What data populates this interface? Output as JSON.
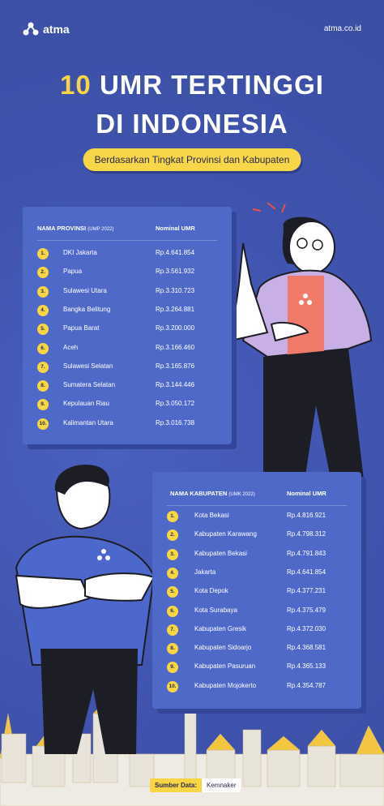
{
  "header": {
    "brand": "atma",
    "site": "atma.co.id"
  },
  "title": {
    "num": "10",
    "line1_rest": "UMR TERTINGGI",
    "line2": "DI INDONESIA",
    "subtitle": "Berdasarkan Tingkat Provinsi dan Kabupaten"
  },
  "provinsi": {
    "col1": "NAMA PROVINSI",
    "col1_note": "(UMP 2022)",
    "col2": "Nominal UMR",
    "rows": [
      {
        "n": "1.",
        "name": "DKI Jakarta",
        "value": "Rp.4.641.854"
      },
      {
        "n": "2.",
        "name": "Papua",
        "value": "Rp.3.561.932"
      },
      {
        "n": "3.",
        "name": "Sulawesi Utara",
        "value": "Rp.3.310.723"
      },
      {
        "n": "4.",
        "name": "Bangka Belitung",
        "value": "Rp.3.264.881"
      },
      {
        "n": "5.",
        "name": "Papua Barat",
        "value": "Rp.3.200.000"
      },
      {
        "n": "6.",
        "name": "Aceh",
        "value": "Rp.3.166.460"
      },
      {
        "n": "7.",
        "name": "Sulawesi Selatan",
        "value": "Rp.3.165.876"
      },
      {
        "n": "8.",
        "name": "Sumatera Selatan",
        "value": "Rp.3.144.446"
      },
      {
        "n": "9.",
        "name": "Kepulauan Riau",
        "value": "Rp.3.050.172"
      },
      {
        "n": "10.",
        "name": "Kalimantan Utara",
        "value": "Rp.3.016.738"
      }
    ]
  },
  "kabupaten": {
    "col1": "NAMA KABUPATEN",
    "col1_note": "(UMK 2022)",
    "col2": "Nominal UMR",
    "rows": [
      {
        "n": "1.",
        "name": "Kota Bekasi",
        "value": "Rp.4.816.921"
      },
      {
        "n": "2.",
        "name": "Kabupaten Karawang",
        "value": "Rp.4.798.312"
      },
      {
        "n": "3.",
        "name": "Kabupaten Bekasi",
        "value": "Rp.4.791.843"
      },
      {
        "n": "4.",
        "name": "Jakarta",
        "value": "Rp.4.641.854"
      },
      {
        "n": "5.",
        "name": "Kota Depok",
        "value": "Rp.4.377.231"
      },
      {
        "n": "6.",
        "name": "Kota Surabaya",
        "value": "Rp.4.375.479"
      },
      {
        "n": "7.",
        "name": "Kabupaten Gresik",
        "value": "Rp.4.372.030"
      },
      {
        "n": "8.",
        "name": "Kabupaten Sidoarjo",
        "value": "Rp.4.368.581"
      },
      {
        "n": "9.",
        "name": "Kabupaten Pasuruan",
        "value": "Rp.4.365.133"
      },
      {
        "n": "10.",
        "name": "Kabupaten Mojokerto",
        "value": "Rp.4.354.787"
      }
    ]
  },
  "source": {
    "label": "Sumber Data:",
    "value": "Kemnaker"
  },
  "colors": {
    "background": "#4257b2",
    "card": "#4f69c9",
    "accent": "#f7d544"
  }
}
